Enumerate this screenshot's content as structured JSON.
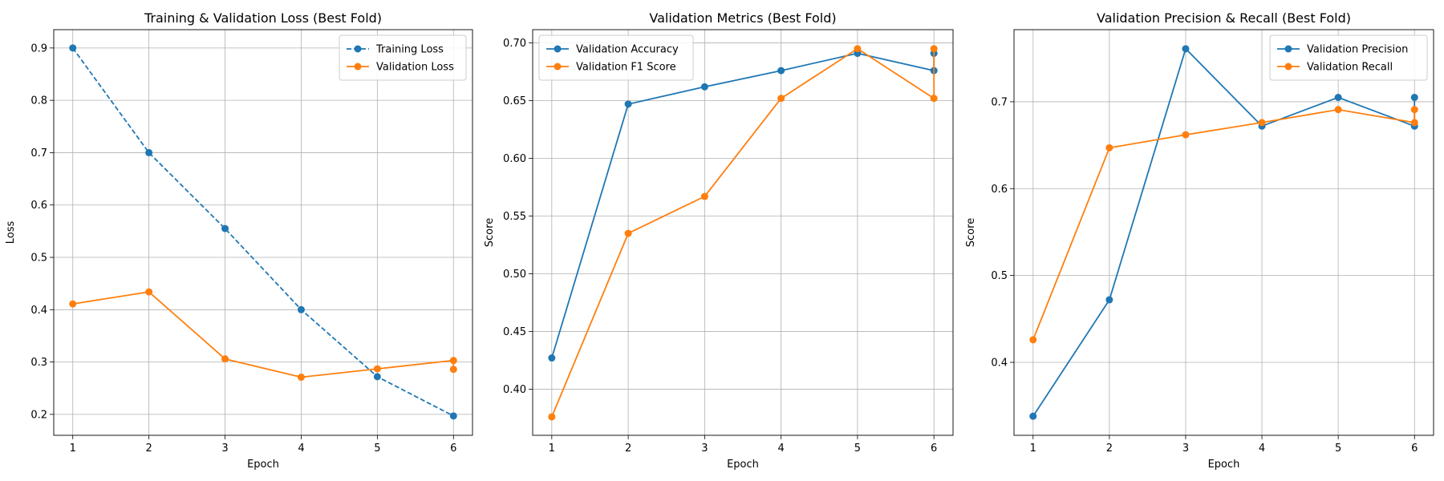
{
  "chart_data": [
    {
      "type": "line",
      "title": "Training & Validation Loss (Best Fold)",
      "xlabel": "Epoch",
      "ylabel": "Loss",
      "x": [
        1,
        2,
        3,
        4,
        5,
        6
      ],
      "xlim": [
        0.75,
        6.25
      ],
      "ylim": [
        0.16,
        0.935
      ],
      "xticks": [
        1,
        2,
        3,
        4,
        5,
        6
      ],
      "yticks": [
        0.2,
        0.3,
        0.4,
        0.5,
        0.6,
        0.7,
        0.8,
        0.9
      ],
      "tick_decimals": 1,
      "grid": true,
      "legend": "upper-right",
      "series": [
        {
          "name": "Training Loss",
          "color": "#1f77b4",
          "dashed": true,
          "points": [
            [
              1,
              0.9
            ],
            [
              2,
              0.7
            ],
            [
              3,
              0.555
            ],
            [
              4,
              0.4
            ],
            [
              5,
              0.272
            ],
            [
              6,
              0.197
            ]
          ]
        },
        {
          "name": "Validation Loss",
          "color": "#ff7f0e",
          "dashed": false,
          "points": [
            [
              1,
              0.411
            ],
            [
              2,
              0.434
            ],
            [
              3,
              0.306
            ],
            [
              4,
              0.271
            ],
            [
              5,
              0.287
            ],
            [
              6,
              0.303
            ],
            [
              6,
              0.286
            ]
          ]
        }
      ]
    },
    {
      "type": "line",
      "title": "Validation Metrics (Best Fold)",
      "xlabel": "Epoch",
      "ylabel": "Score",
      "x": [
        1,
        2,
        3,
        4,
        5,
        6
      ],
      "xlim": [
        0.75,
        6.25
      ],
      "ylim": [
        0.36,
        0.7115
      ],
      "xticks": [
        1,
        2,
        3,
        4,
        5,
        6
      ],
      "yticks": [
        0.4,
        0.45,
        0.5,
        0.55,
        0.6,
        0.65,
        0.7
      ],
      "tick_decimals": 2,
      "grid": true,
      "legend": "upper-left",
      "series": [
        {
          "name": "Validation Accuracy",
          "color": "#1f77b4",
          "dashed": false,
          "points": [
            [
              1,
              0.427
            ],
            [
              2,
              0.647
            ],
            [
              3,
              0.662
            ],
            [
              4,
              0.676
            ],
            [
              5,
              0.691
            ],
            [
              6,
              0.676
            ],
            [
              6,
              0.691
            ]
          ]
        },
        {
          "name": "Validation F1 Score",
          "color": "#ff7f0e",
          "dashed": false,
          "points": [
            [
              1,
              0.376
            ],
            [
              2,
              0.535
            ],
            [
              3,
              0.567
            ],
            [
              4,
              0.652
            ],
            [
              5,
              0.695
            ],
            [
              6,
              0.652
            ],
            [
              6,
              0.695
            ]
          ]
        }
      ]
    },
    {
      "type": "line",
      "title": "Validation Precision & Recall (Best Fold)",
      "xlabel": "Epoch",
      "ylabel": "Score",
      "x": [
        1,
        2,
        3,
        4,
        5,
        6
      ],
      "xlim": [
        0.75,
        6.25
      ],
      "ylim": [
        0.316,
        0.783
      ],
      "xticks": [
        1,
        2,
        3,
        4,
        5,
        6
      ],
      "yticks": [
        0.4,
        0.5,
        0.6,
        0.7
      ],
      "tick_decimals": 1,
      "grid": true,
      "legend": "upper-right",
      "series": [
        {
          "name": "Validation Precision",
          "color": "#1f77b4",
          "dashed": false,
          "points": [
            [
              1,
              0.338
            ],
            [
              2,
              0.472
            ],
            [
              3,
              0.761
            ],
            [
              4,
              0.672
            ],
            [
              5,
              0.705
            ],
            [
              6,
              0.672
            ],
            [
              6,
              0.705
            ]
          ]
        },
        {
          "name": "Validation Recall",
          "color": "#ff7f0e",
          "dashed": false,
          "points": [
            [
              1,
              0.426
            ],
            [
              2,
              0.647
            ],
            [
              3,
              0.662
            ],
            [
              4,
              0.676
            ],
            [
              5,
              0.691
            ],
            [
              6,
              0.676
            ],
            [
              6,
              0.691
            ]
          ]
        }
      ]
    }
  ]
}
